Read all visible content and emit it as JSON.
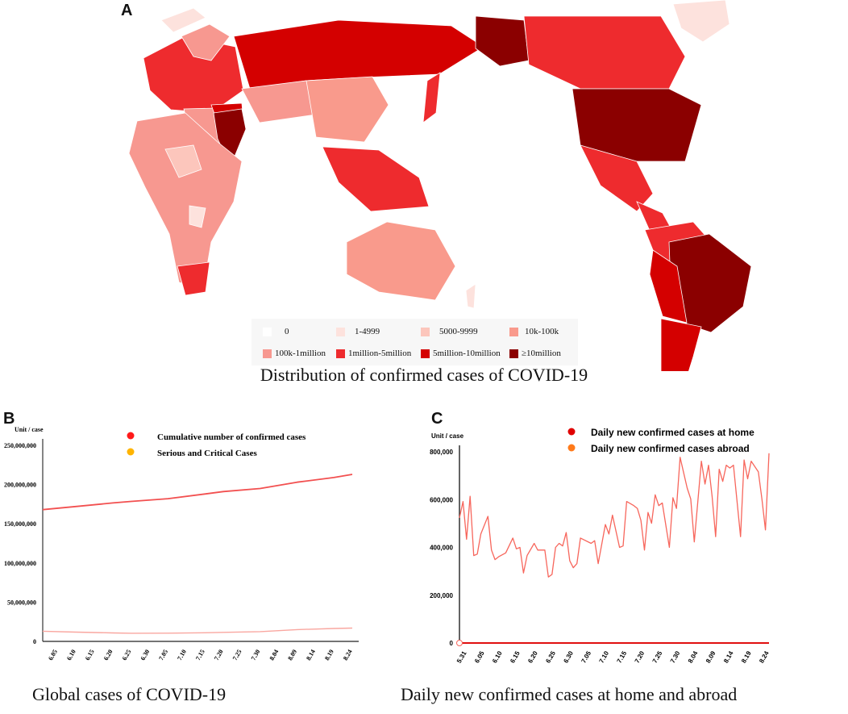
{
  "panels": {
    "a": "A",
    "b": "B",
    "c": "C"
  },
  "map": {
    "caption": "Distribution of confirmed cases of COVID-19",
    "legend": [
      {
        "label": "0",
        "color": "#ffffff"
      },
      {
        "label": "1-4999",
        "color": "#fde2dd"
      },
      {
        "label": "5000-9999",
        "color": "#fcc6bc"
      },
      {
        "label": "10k-100k",
        "color": "#f99a8c"
      },
      {
        "label": "100k-1million",
        "color": "#f79890"
      },
      {
        "label": "1million-5million",
        "color": "#ee2b2e"
      },
      {
        "label": "5million-10million",
        "color": "#d40000"
      },
      {
        "label": "≥10million",
        "color": "#8b0000"
      }
    ]
  },
  "chart_data": [
    {
      "type": "line",
      "caption": "Global cases of COVID-19",
      "ylabel": "Unit / case",
      "ylim": [
        0,
        250000000
      ],
      "yticks": [
        "0",
        "50,000,000",
        "100,000,000",
        "150,000,000",
        "200,000,000",
        "250,000,000"
      ],
      "ytick_values": [
        0,
        50000000,
        100000000,
        150000000,
        200000000,
        250000000
      ],
      "xticks": [
        "6.05",
        "6.10",
        "6.15",
        "6.20",
        "6.25",
        "6.30",
        "7.05",
        "7.10",
        "7.15",
        "7.20",
        "7.25",
        "7.30",
        "8.04",
        "8.09",
        "8.14",
        "8.19",
        "8.24"
      ],
      "legend": "top",
      "series": [
        {
          "name": "Cumulative number of confirmed cases",
          "color": "#ff1a1a",
          "line_color": "#f25050",
          "x": [
            "6.01",
            "6.10",
            "6.20",
            "6.25",
            "7.05",
            "7.15",
            "7.20",
            "7.30",
            "8.09",
            "8.19",
            "8.24"
          ],
          "values": [
            168000000,
            172000000,
            176500000,
            178500000,
            182000000,
            188000000,
            191000000,
            195000000,
            203000000,
            209000000,
            213000000
          ]
        },
        {
          "name": "Serious and Critical Cases",
          "color": "#ffb400",
          "line_color": "#f9a7a0",
          "x": [
            "6.01",
            "6.10",
            "6.20",
            "6.25",
            "7.05",
            "7.15",
            "7.20",
            "7.30",
            "8.09",
            "8.19",
            "8.24"
          ],
          "values": [
            13000000,
            11800000,
            10800000,
            10400000,
            10500000,
            11000000,
            11500000,
            12500000,
            15000000,
            16500000,
            17000000
          ]
        }
      ]
    },
    {
      "type": "line",
      "caption": "Daily new confirmed cases at home and abroad",
      "ylabel": "Unit / case",
      "ylim": [
        0,
        800000
      ],
      "yticks": [
        "0",
        "200,000",
        "400,000",
        "600,000",
        "800,000"
      ],
      "ytick_values": [
        0,
        200000,
        400000,
        600000,
        800000
      ],
      "xticks": [
        "5.31",
        "6.05",
        "6.10",
        "6.15",
        "6.20",
        "6.25",
        "6.30",
        "7.05",
        "7.10",
        "7.15",
        "7.20",
        "7.25",
        "7.30",
        "8.04",
        "8.09",
        "8.14",
        "8.19",
        "8.24"
      ],
      "legend": "top",
      "series": [
        {
          "name": "Daily new confirmed cases at home",
          "color": "#e00000",
          "line_color": "#e01010",
          "x": [
            "5.29",
            "8.24"
          ],
          "values": [
            0,
            0
          ]
        },
        {
          "name": "Daily new confirmed cases abroad",
          "color": "#ff7a1a",
          "line_color": "#f7665c",
          "x": [
            "5.29",
            "5.30",
            "5.31",
            "6.01",
            "6.02",
            "6.03",
            "6.04",
            "6.06",
            "6.07",
            "6.08",
            "6.09",
            "6.11",
            "6.13",
            "6.14",
            "6.15",
            "6.16",
            "6.17",
            "6.19",
            "6.20",
            "6.22",
            "6.23",
            "6.24",
            "6.25",
            "6.26",
            "6.27",
            "6.28",
            "6.29",
            "6.30",
            "7.01",
            "7.02",
            "7.05",
            "7.06",
            "7.07",
            "7.09",
            "7.10",
            "7.11",
            "7.13",
            "7.14",
            "7.15",
            "7.17",
            "7.18",
            "7.19",
            "7.20",
            "7.21",
            "7.22",
            "7.23",
            "7.24",
            "7.25",
            "7.27",
            "7.28",
            "7.29",
            "7.30",
            "8.01",
            "8.02",
            "8.03",
            "8.05",
            "8.06",
            "8.07",
            "8.08",
            "8.09",
            "8.10",
            "8.11",
            "8.12",
            "8.13",
            "8.14",
            "8.16",
            "8.17",
            "8.18",
            "8.19",
            "8.21",
            "8.22",
            "8.23",
            "8.24"
          ],
          "values": [
            524000,
            592000,
            434000,
            614000,
            366000,
            372000,
            456000,
            530000,
            389000,
            349000,
            361000,
            377000,
            439000,
            394000,
            400000,
            293000,
            366000,
            417000,
            389000,
            389000,
            276000,
            287000,
            400000,
            417000,
            406000,
            462000,
            344000,
            315000,
            332000,
            439000,
            417000,
            428000,
            332000,
            496000,
            456000,
            535000,
            400000,
            406000,
            592000,
            575000,
            563000,
            513000,
            389000,
            546000,
            501000,
            620000,
            575000,
            586000,
            400000,
            608000,
            563000,
            777000,
            648000,
            603000,
            423000,
            761000,
            665000,
            744000,
            614000,
            445000,
            727000,
            676000,
            744000,
            732000,
            744000,
            445000,
            766000,
            687000,
            761000,
            716000,
            603000,
            473000,
            794000
          ]
        }
      ]
    }
  ]
}
